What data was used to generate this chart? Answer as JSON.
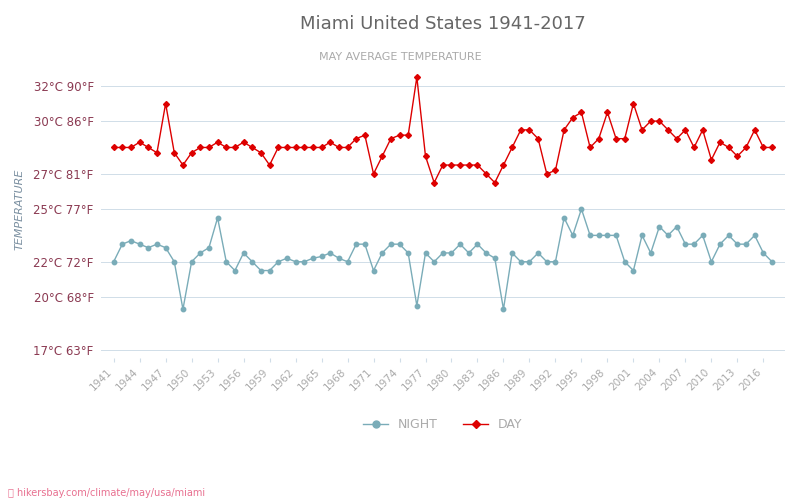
{
  "title": "Miami United States 1941-2017",
  "subtitle": "MAY AVERAGE TEMPERATURE",
  "ylabel": "TEMPERATURE",
  "years": [
    1941,
    1942,
    1943,
    1944,
    1945,
    1946,
    1947,
    1948,
    1949,
    1950,
    1951,
    1952,
    1953,
    1954,
    1955,
    1956,
    1957,
    1958,
    1959,
    1960,
    1961,
    1962,
    1963,
    1964,
    1965,
    1966,
    1967,
    1968,
    1969,
    1970,
    1971,
    1972,
    1973,
    1974,
    1975,
    1976,
    1977,
    1978,
    1979,
    1980,
    1981,
    1982,
    1983,
    1984,
    1985,
    1986,
    1987,
    1988,
    1989,
    1990,
    1991,
    1992,
    1993,
    1994,
    1995,
    1996,
    1997,
    1998,
    1999,
    2000,
    2001,
    2002,
    2003,
    2004,
    2005,
    2006,
    2007,
    2008,
    2009,
    2010,
    2011,
    2012,
    2013,
    2014,
    2015,
    2016,
    2017
  ],
  "night": [
    22.0,
    23.0,
    23.2,
    23.0,
    22.8,
    23.0,
    22.8,
    22.0,
    19.3,
    22.0,
    22.5,
    22.8,
    24.5,
    22.0,
    21.5,
    22.5,
    22.0,
    21.5,
    21.5,
    22.0,
    22.2,
    22.0,
    22.0,
    22.2,
    22.3,
    22.5,
    22.2,
    22.0,
    23.0,
    23.0,
    21.5,
    22.5,
    23.0,
    23.0,
    22.5,
    19.5,
    22.5,
    22.0,
    22.5,
    22.5,
    23.0,
    22.5,
    23.0,
    22.5,
    22.2,
    19.3,
    22.5,
    22.0,
    22.0,
    22.5,
    22.0,
    22.0,
    24.5,
    23.5,
    25.0,
    23.5,
    23.5,
    23.5,
    23.5,
    22.0,
    21.5,
    23.5,
    22.5,
    24.0,
    23.5,
    24.0,
    23.0,
    23.0,
    23.5,
    22.0,
    23.0,
    23.5,
    23.0,
    23.0,
    23.5,
    22.5,
    22.0
  ],
  "day": [
    28.5,
    28.5,
    28.5,
    28.8,
    28.5,
    28.2,
    31.0,
    28.2,
    27.5,
    28.2,
    28.5,
    28.5,
    28.8,
    28.5,
    28.5,
    28.8,
    28.5,
    28.2,
    27.5,
    28.5,
    28.5,
    28.5,
    28.5,
    28.5,
    28.5,
    28.8,
    28.5,
    28.5,
    29.0,
    29.2,
    27.0,
    28.0,
    29.0,
    29.2,
    29.2,
    32.5,
    28.0,
    26.5,
    27.5,
    27.5,
    27.5,
    27.5,
    27.5,
    27.0,
    26.5,
    27.5,
    28.5,
    29.5,
    29.5,
    29.0,
    27.0,
    27.2,
    29.5,
    30.2,
    30.5,
    28.5,
    29.0,
    30.5,
    29.0,
    29.0,
    31.0,
    29.5,
    30.0,
    30.0,
    29.5,
    29.0,
    29.5,
    28.5,
    29.5,
    27.8,
    28.8,
    28.5,
    28.0,
    28.5,
    29.5,
    28.5,
    28.5
  ],
  "night_color": "#7aacb8",
  "day_color": "#dd0000",
  "background_color": "#ffffff",
  "grid_color": "#d0dde8",
  "title_color": "#666666",
  "subtitle_color": "#aaaaaa",
  "ylabel_color": "#7a8fa0",
  "tick_label_color": "#8b3a52",
  "xtick_color": "#aaaaaa",
  "yticks_c": [
    17,
    20,
    22,
    25,
    27,
    30,
    32
  ],
  "yticks_f": [
    63,
    68,
    72,
    77,
    81,
    86,
    90
  ],
  "xtick_years": [
    1941,
    1944,
    1947,
    1950,
    1953,
    1956,
    1959,
    1962,
    1965,
    1968,
    1971,
    1974,
    1977,
    1980,
    1983,
    1986,
    1989,
    1992,
    1995,
    1998,
    2001,
    2004,
    2007,
    2010,
    2013,
    2016
  ],
  "ylim_bottom": 16.5,
  "ylim_top": 33.5,
  "legend_night": "NIGHT",
  "legend_day": "DAY",
  "url_text": "⌖ hikersbay.com/climate/may/usa/miami",
  "url_color": "#e87090"
}
